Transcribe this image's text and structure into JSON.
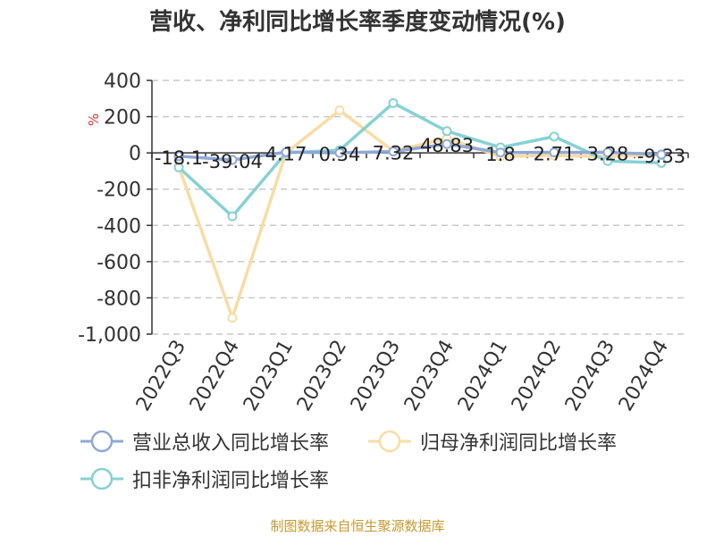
{
  "chart_data": {
    "type": "line",
    "title": "营收、净利同比增长率季度变动情况(%)",
    "ylabel": "%",
    "categories": [
      "2022Q3",
      "2022Q4",
      "2023Q1",
      "2023Q2",
      "2023Q3",
      "2023Q4",
      "2024Q1",
      "2024Q2",
      "2024Q3",
      "2024Q4"
    ],
    "ylim": [
      -1000,
      400
    ],
    "yticks": [
      400,
      200,
      0,
      -200,
      -400,
      -600,
      -800,
      -1000
    ],
    "ytick_labels": [
      "400",
      "200",
      "0",
      "-200",
      "-400",
      "-600",
      "-800",
      "-1,000"
    ],
    "grid": true,
    "legend_position": "bottom",
    "series": [
      {
        "name": "营业总收入同比增长率",
        "color": "#8fa8d6",
        "values": [
          -18.1,
          -39.04,
          4.17,
          0.34,
          7.32,
          48.83,
          1.8,
          2.71,
          3.28,
          -9.33
        ],
        "labels": [
          "-18.1",
          "-39.04",
          "4.17",
          "0.34",
          "7.32",
          "48.83",
          "1.8",
          "2.71",
          "3.28",
          "-9.33"
        ]
      },
      {
        "name": "归母净利润同比增长率",
        "color": "#f9dca4",
        "values": [
          -75,
          -910,
          0,
          235,
          10,
          80,
          -20,
          -15,
          -20,
          -10
        ]
      },
      {
        "name": "扣非净利润同比增长率",
        "color": "#86d1d4",
        "values": [
          -80,
          -350,
          0,
          15,
          275,
          120,
          30,
          90,
          -45,
          -55
        ]
      }
    ]
  },
  "source_note": "制图数据来自恒生聚源数据库"
}
